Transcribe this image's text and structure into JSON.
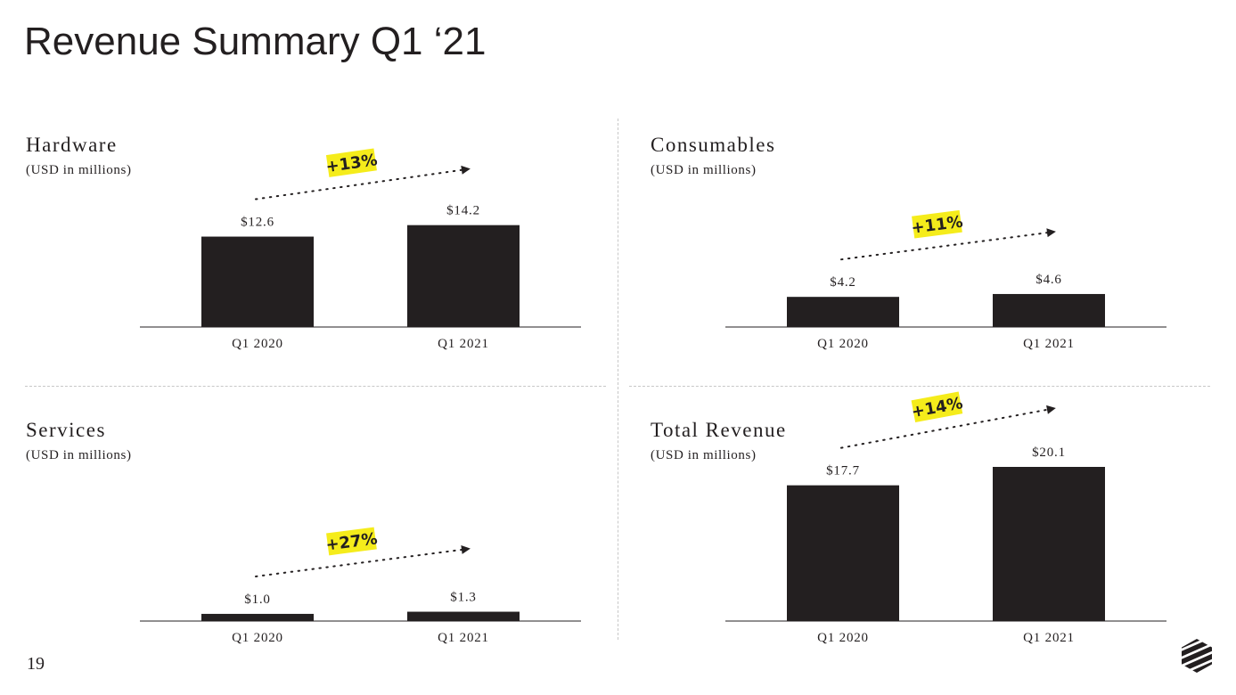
{
  "slide": {
    "title": "Revenue Summary Q1 ‘21",
    "page_number": "19"
  },
  "colors": {
    "bar": "#231f20",
    "highlight": "#f5ec1b",
    "divider": "#c8c8c8"
  },
  "chart_data": [
    {
      "type": "bar",
      "title": "Hardware",
      "subtitle": "(USD in millions)",
      "categories": [
        "Q1 2020",
        "Q1 2021"
      ],
      "values": [
        12.6,
        14.2
      ],
      "value_labels": [
        "$12.6",
        "$14.2"
      ],
      "growth": "+13%",
      "ylim": [
        0,
        15.4
      ]
    },
    {
      "type": "bar",
      "title": "Consumables",
      "subtitle": "(USD in millions)",
      "categories": [
        "Q1 2020",
        "Q1 2021"
      ],
      "values": [
        4.2,
        4.6
      ],
      "value_labels": [
        "$4.2",
        "$4.6"
      ],
      "growth": "+11%",
      "ylim": [
        0,
        15.4
      ]
    },
    {
      "type": "bar",
      "title": "Services",
      "subtitle": "(USD in millions)",
      "categories": [
        "Q1 2020",
        "Q1 2021"
      ],
      "values": [
        1.0,
        1.3
      ],
      "value_labels": [
        "$1.0",
        "$1.3"
      ],
      "growth": "+27%",
      "ylim": [
        0,
        15.4
      ]
    },
    {
      "type": "bar",
      "title": "Total Revenue",
      "subtitle": "(USD in millions)",
      "categories": [
        "Q1 2020",
        "Q1 2021"
      ],
      "values": [
        17.7,
        20.1
      ],
      "value_labels": [
        "$17.7",
        "$20.1"
      ],
      "growth": "+14%",
      "ylim": [
        0,
        20.1
      ]
    }
  ]
}
